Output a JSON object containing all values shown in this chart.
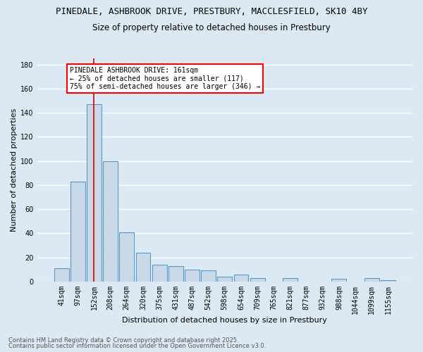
{
  "title_line1": "PINEDALE, ASHBROOK DRIVE, PRESTBURY, MACCLESFIELD, SK10 4BY",
  "title_line2": "Size of property relative to detached houses in Prestbury",
  "xlabel": "Distribution of detached houses by size in Prestbury",
  "ylabel": "Number of detached properties",
  "categories": [
    "41sqm",
    "97sqm",
    "152sqm",
    "208sqm",
    "264sqm",
    "320sqm",
    "375sqm",
    "431sqm",
    "487sqm",
    "542sqm",
    "598sqm",
    "654sqm",
    "709sqm",
    "765sqm",
    "821sqm",
    "877sqm",
    "932sqm",
    "988sqm",
    "1044sqm",
    "1099sqm",
    "1155sqm"
  ],
  "values": [
    11,
    83,
    147,
    100,
    41,
    24,
    14,
    13,
    10,
    9,
    4,
    6,
    3,
    0,
    3,
    0,
    0,
    2,
    0,
    3,
    1
  ],
  "bar_color": "#c9d9e8",
  "bar_edge_color": "#5a9ac5",
  "background_color": "#dce9f5",
  "grid_color": "#ffffff",
  "annotation_line1": "PINEDALE ASHBROOK DRIVE: 161sqm",
  "annotation_line2": "← 25% of detached houses are smaller (117)",
  "annotation_line3": "75% of semi-detached houses are larger (346) →",
  "vline_x": 2,
  "ylim": [
    0,
    185
  ],
  "yticks": [
    0,
    20,
    40,
    60,
    80,
    100,
    120,
    140,
    160,
    180
  ],
  "footer_line1": "Contains HM Land Registry data © Crown copyright and database right 2025.",
  "footer_line2": "Contains public sector information licensed under the Open Government Licence v3.0.",
  "title_fontsize": 9,
  "subtitle_fontsize": 8.5,
  "axis_label_fontsize": 8,
  "tick_fontsize": 7,
  "annotation_fontsize": 7,
  "footer_fontsize": 6
}
